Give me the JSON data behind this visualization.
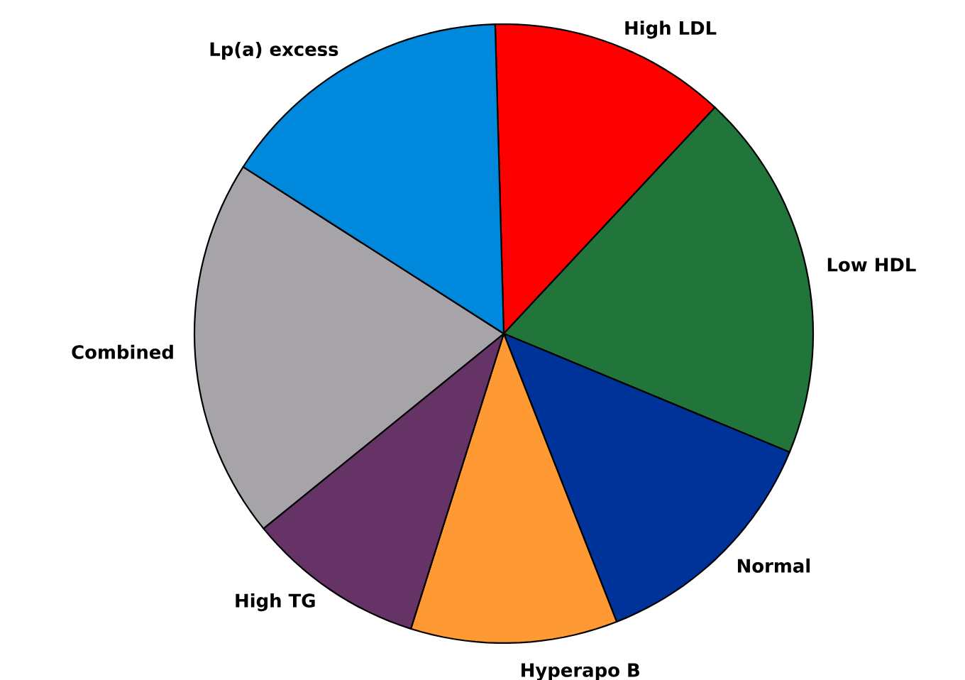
{
  "chart_data": {
    "type": "pie",
    "categories": [
      "High LDL",
      "Low HDL",
      "Normal",
      "Hyperapo B",
      "High TG",
      "Combined",
      "Lp(a) excess"
    ],
    "values": [
      12.4,
      19.3,
      12.8,
      10.8,
      9.3,
      19.9,
      15.5
    ],
    "colors": [
      "#ff0000",
      "#22753a",
      "#003399",
      "#ff9933",
      "#663366",
      "#a6a4a8",
      "#0088dd"
    ]
  }
}
